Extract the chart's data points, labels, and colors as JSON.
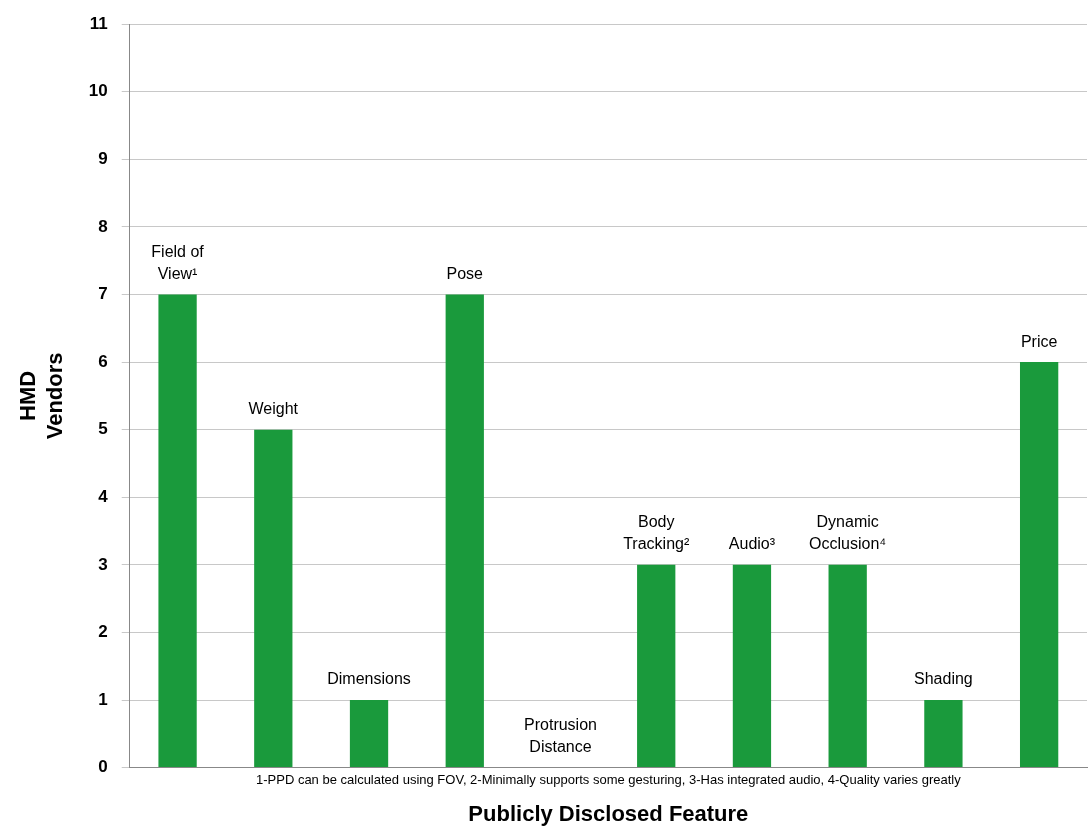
{
  "chart_data": {
    "type": "bar",
    "categories": [
      "Field of View¹",
      "Weight",
      "Dimensions",
      "Pose",
      "Protrusion Distance",
      "Body Tracking²",
      "Audio³",
      "Dynamic Occlusion⁴",
      "Shading",
      "Price"
    ],
    "values": [
      7,
      5,
      1,
      7,
      0,
      3,
      3,
      3,
      1,
      6
    ],
    "color": "#1a9a3c",
    "xlabel": "Publicly Disclosed Feature",
    "ylabel": "HMD Vendors",
    "ylim": [
      0,
      11
    ],
    "yticks": [
      0,
      1,
      2,
      3,
      4,
      5,
      6,
      7,
      8,
      9,
      10,
      11
    ],
    "grid": "y",
    "annotations": [
      "1-PPD can be calculated using FOV, 2-Minimally supports some gesturing, 3-Has integrated audio, 4-Quality varies greatly"
    ]
  }
}
